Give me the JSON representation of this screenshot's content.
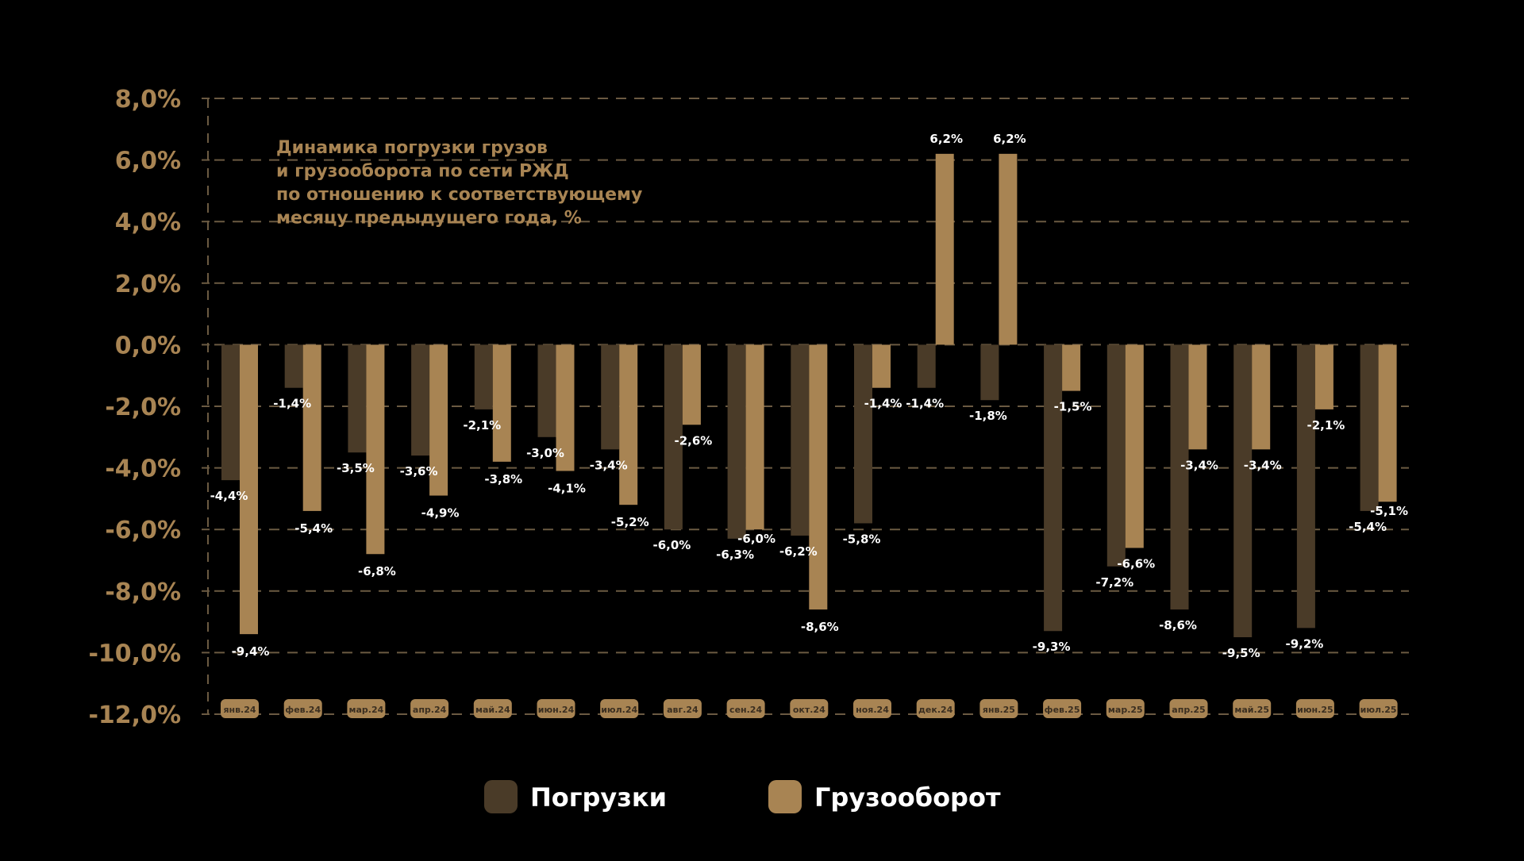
{
  "chart_data": {
    "type": "bar",
    "title_lines": [
      "Динамика погрузки грузов",
      "и грузооборота по сети РЖД",
      "по отношению к соответствующему",
      "месяцу предыдущего года, %"
    ],
    "categories": [
      "янв.24",
      "фев.24",
      "мар.24",
      "апр.24",
      "май.24",
      "июн.24",
      "июл.24",
      "авг.24",
      "сен.24",
      "окт.24",
      "ноя.24",
      "дек.24",
      "янв.25",
      "фев.25",
      "мар.25",
      "апр.25",
      "май.25",
      "июн.25",
      "июл.25"
    ],
    "series": [
      {
        "name": "Погрузки",
        "color": "#4a3b28",
        "values": [
          -4.4,
          -1.4,
          -3.5,
          -3.6,
          -2.1,
          -3.0,
          -3.4,
          -6.0,
          -6.3,
          -6.2,
          -5.8,
          -1.4,
          -1.8,
          -9.3,
          -7.2,
          -8.6,
          -9.5,
          -9.2,
          -5.4
        ],
        "labels": [
          "-4,4%",
          "-1,4%",
          "-3,5%",
          "-3,6%",
          "-2,1%",
          "-3,0%",
          "-3,4%",
          "-6,0%",
          "-6,3%",
          "-6,2%",
          "-5,8%",
          "-1,4%",
          "-1,8%",
          "-9,3%",
          "-7,2%",
          "-8,6%",
          "-9,5%",
          "-9,2%",
          "-5,4%"
        ]
      },
      {
        "name": "Грузооборот",
        "color": "#a88453",
        "values": [
          -9.4,
          -5.4,
          -6.8,
          -4.9,
          -3.8,
          -4.1,
          -5.2,
          -2.6,
          -6.0,
          -8.6,
          -1.4,
          6.2,
          6.2,
          -1.5,
          -6.6,
          -3.4,
          -3.4,
          -2.1,
          -5.1
        ],
        "labels": [
          "-9,4%",
          "-5,4%",
          "-6,8%",
          "-4,9%",
          "-3,8%",
          "-4,1%",
          "-5,2%",
          "-2,6%",
          "-6,0%",
          "-8,6%",
          "-1,4%",
          "6,2%",
          "6,2%",
          "-1,5%",
          "-6,6%",
          "-3,4%",
          "-3,4%",
          "-2,1%",
          "-5,1%"
        ]
      }
    ],
    "ylim": [
      -12,
      8
    ],
    "yticks": [
      8,
      6,
      4,
      2,
      0,
      -2,
      -4,
      -6,
      -8,
      -10,
      -12
    ],
    "ytick_labels": [
      "8,0%",
      "6,0%",
      "4,0%",
      "2,0%",
      "0,0%",
      "-2,0%",
      "-4,0%",
      "-6,0%",
      "-8,0%",
      "-10,0%",
      "-12,0%"
    ],
    "grid": true,
    "legend_position": "bottom-center"
  },
  "colors": {
    "background": "#000000",
    "accent": "#a88453",
    "dark_bar": "#4a3b28",
    "grid": "#6b5a42",
    "value_text": "#ffffff"
  }
}
